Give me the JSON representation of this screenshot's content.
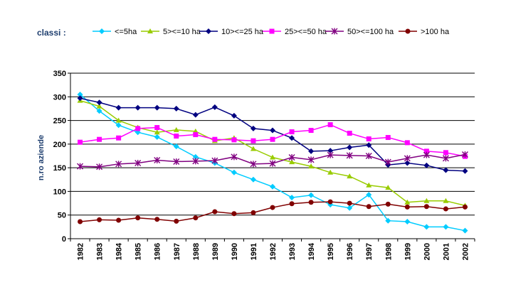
{
  "legend_title": "classi :",
  "chart_data": {
    "type": "line",
    "ylabel": "n.ro aziende",
    "xlabel": "",
    "ylim": [
      0,
      350
    ],
    "yticks": [
      0,
      50,
      100,
      150,
      200,
      250,
      300,
      350
    ],
    "grid": "horizontal",
    "legend": "top",
    "categories": [
      "1982",
      "1983",
      "1984",
      "1985",
      "1986",
      "1987",
      "1988",
      "1989",
      "1990",
      "1991",
      "1992",
      "1993",
      "1994",
      "1995",
      "1996",
      "1997",
      "1998",
      "1999",
      "2000",
      "2001",
      "2002"
    ],
    "series": [
      {
        "name": "<=5ha",
        "color": "#00ccff",
        "marker": "diamond",
        "values": [
          305,
          270,
          240,
          225,
          215,
          195,
          173,
          160,
          140,
          125,
          110,
          87,
          92,
          72,
          65,
          93,
          38,
          36,
          25,
          25,
          17
        ]
      },
      {
        "name": "5><=10 ha",
        "color": "#99cc00",
        "marker": "triangle",
        "values": [
          292,
          280,
          250,
          235,
          225,
          230,
          227,
          207,
          213,
          190,
          172,
          162,
          153,
          140,
          132,
          113,
          108,
          77,
          80,
          80,
          70
        ]
      },
      {
        "name": "10><=25 ha",
        "color": "#000080",
        "marker": "diamond",
        "values": [
          297,
          288,
          277,
          277,
          277,
          275,
          262,
          278,
          260,
          233,
          229,
          213,
          185,
          186,
          193,
          198,
          156,
          160,
          155,
          145,
          143
        ]
      },
      {
        "name": "25><=50 ha",
        "color": "#ff00ff",
        "marker": "square",
        "values": [
          204,
          210,
          213,
          233,
          235,
          217,
          220,
          210,
          209,
          207,
          210,
          226,
          229,
          241,
          223,
          211,
          214,
          203,
          185,
          182,
          174
        ]
      },
      {
        "name": "50><=100 ha",
        "color": "#800080",
        "marker": "star",
        "values": [
          153,
          152,
          158,
          160,
          166,
          163,
          164,
          165,
          173,
          158,
          159,
          172,
          167,
          177,
          176,
          175,
          162,
          170,
          177,
          170,
          178
        ]
      },
      {
        "name": ">100 ha",
        "color": "#800000",
        "marker": "circle",
        "values": [
          36,
          40,
          39,
          44,
          41,
          37,
          44,
          57,
          53,
          55,
          66,
          74,
          77,
          78,
          75,
          68,
          73,
          67,
          68,
          63,
          67
        ]
      }
    ]
  }
}
